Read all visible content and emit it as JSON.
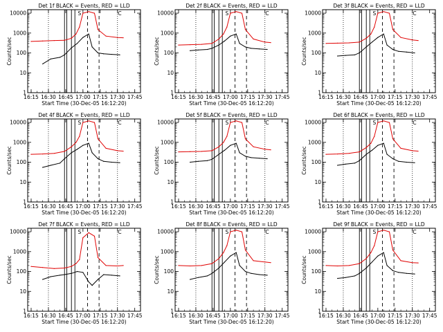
{
  "figure": {
    "xtick_labels": [
      "16:15",
      "16:30",
      "16:45",
      "17:00",
      "17:15",
      "17:30",
      "17:45"
    ],
    "ytick_labels": [
      "1",
      "10",
      "100",
      "1000",
      "10000"
    ],
    "xlabel": "Start Time (30-Dec-05 16:12:20)",
    "ylabel": "Counts/sec",
    "colors": {
      "events": "#000000",
      "lld": "#e00000",
      "axes": "#000000",
      "background": "#ffffff"
    },
    "annotations": {
      "flag_a": "S",
      "flag_b": "C"
    }
  },
  "chart_data": [
    {
      "type": "line",
      "title": "Det 1f BLACK = Events, RED = LLD",
      "xlabel": "Start Time (30-Dec-05 16:12:20)",
      "ylabel": "Counts/sec",
      "yscale": "log",
      "ylim": [
        1,
        15000
      ],
      "xlim": [
        "16:12",
        "17:50"
      ],
      "series": [
        {
          "name": "Events",
          "color": "#000000",
          "x": [
            "16:25",
            "16:32",
            "16:40",
            "16:44",
            "16:50",
            "16:55",
            "17:00",
            "17:05",
            "17:08",
            "17:13",
            "17:18",
            "17:25",
            "17:32"
          ],
          "values": [
            28,
            50,
            60,
            80,
            180,
            300,
            600,
            900,
            200,
            100,
            90,
            85,
            80
          ]
        },
        {
          "name": "LLD",
          "color": "#e00000",
          "x": [
            "16:15",
            "16:25",
            "16:35",
            "16:44",
            "16:50",
            "16:54",
            "16:57",
            "17:00",
            "17:05",
            "17:10",
            "17:13",
            "17:20",
            "17:30",
            "17:35"
          ],
          "values": [
            380,
            400,
            420,
            430,
            550,
            900,
            2000,
            10000,
            12000,
            10000,
            1500,
            700,
            600,
            580
          ]
        }
      ]
    },
    {
      "type": "line",
      "title": "Det 2f BLACK = Events, RED = LLD",
      "xlabel": "Start Time (30-Dec-05 16:12:20)",
      "ylabel": "Counts/sec",
      "yscale": "log",
      "ylim": [
        1,
        15000
      ],
      "xlim": [
        "16:12",
        "17:50"
      ],
      "series": [
        {
          "name": "Events",
          "color": "#000000",
          "x": [
            "16:25",
            "16:32",
            "16:40",
            "16:44",
            "16:50",
            "16:55",
            "17:00",
            "17:05",
            "17:08",
            "17:13",
            "17:18",
            "17:25",
            "17:32"
          ],
          "values": [
            130,
            140,
            150,
            170,
            250,
            400,
            700,
            900,
            300,
            200,
            170,
            160,
            150
          ]
        },
        {
          "name": "LLD",
          "color": "#e00000",
          "x": [
            "16:15",
            "16:25",
            "16:35",
            "16:44",
            "16:50",
            "16:54",
            "16:57",
            "17:00",
            "17:05",
            "17:10",
            "17:13",
            "17:20",
            "17:30",
            "17:35"
          ],
          "values": [
            250,
            260,
            270,
            300,
            500,
            900,
            2000,
            10000,
            12000,
            10000,
            1500,
            500,
            350,
            330
          ]
        }
      ]
    },
    {
      "type": "line",
      "title": "Det 3f BLACK = Events, RED = LLD",
      "xlabel": "Start Time (30-Dec-05 16:12:20)",
      "ylabel": "Counts/sec",
      "yscale": "log",
      "ylim": [
        1,
        15000
      ],
      "xlim": [
        "16:12",
        "17:50"
      ],
      "series": [
        {
          "name": "Events",
          "color": "#000000",
          "x": [
            "16:25",
            "16:32",
            "16:40",
            "16:44",
            "16:50",
            "16:55",
            "17:00",
            "17:05",
            "17:08",
            "17:13",
            "17:18",
            "17:25",
            "17:32"
          ],
          "values": [
            70,
            75,
            80,
            100,
            200,
            350,
            600,
            900,
            250,
            150,
            120,
            110,
            100
          ]
        },
        {
          "name": "LLD",
          "color": "#e00000",
          "x": [
            "16:15",
            "16:25",
            "16:35",
            "16:44",
            "16:50",
            "16:54",
            "16:57",
            "17:00",
            "17:05",
            "17:10",
            "17:13",
            "17:20",
            "17:30",
            "17:35"
          ],
          "values": [
            300,
            310,
            320,
            350,
            550,
            900,
            2000,
            10000,
            12000,
            10000,
            1500,
            600,
            450,
            420
          ]
        }
      ]
    },
    {
      "type": "line",
      "title": "Det 4f BLACK = Events, RED = LLD",
      "xlabel": "Start Time (30-Dec-05 16:12:20)",
      "ylabel": "Counts/sec",
      "yscale": "log",
      "ylim": [
        1,
        15000
      ],
      "xlim": [
        "16:12",
        "17:50"
      ],
      "series": [
        {
          "name": "Events",
          "color": "#000000",
          "x": [
            "16:25",
            "16:32",
            "16:40",
            "16:44",
            "16:50",
            "16:55",
            "17:00",
            "17:05",
            "17:08",
            "17:13",
            "17:18",
            "17:25",
            "17:32"
          ],
          "values": [
            55,
            70,
            90,
            150,
            300,
            450,
            700,
            900,
            300,
            150,
            110,
            100,
            95
          ]
        },
        {
          "name": "LLD",
          "color": "#e00000",
          "x": [
            "16:15",
            "16:25",
            "16:35",
            "16:44",
            "16:50",
            "16:54",
            "16:57",
            "17:00",
            "17:05",
            "17:10",
            "17:13",
            "17:20",
            "17:30",
            "17:35"
          ],
          "values": [
            250,
            260,
            280,
            350,
            600,
            1000,
            2000,
            10000,
            12000,
            10000,
            1500,
            500,
            380,
            360
          ]
        }
      ]
    },
    {
      "type": "line",
      "title": "Det 5f BLACK = Events, RED = LLD",
      "xlabel": "Start Time (30-Dec-05 16:12:20)",
      "ylabel": "Counts/sec",
      "yscale": "log",
      "ylim": [
        1,
        15000
      ],
      "xlim": [
        "16:12",
        "17:50"
      ],
      "series": [
        {
          "name": "Events",
          "color": "#000000",
          "x": [
            "16:25",
            "16:32",
            "16:40",
            "16:44",
            "16:50",
            "16:55",
            "17:00",
            "17:05",
            "17:08",
            "17:13",
            "17:18",
            "17:25",
            "17:32"
          ],
          "values": [
            100,
            110,
            120,
            140,
            250,
            400,
            700,
            900,
            300,
            200,
            170,
            160,
            150
          ]
        },
        {
          "name": "LLD",
          "color": "#e00000",
          "x": [
            "16:15",
            "16:25",
            "16:35",
            "16:44",
            "16:50",
            "16:54",
            "16:57",
            "17:00",
            "17:05",
            "17:10",
            "17:13",
            "17:20",
            "17:30",
            "17:35"
          ],
          "values": [
            330,
            340,
            350,
            380,
            600,
            1000,
            2000,
            10000,
            12000,
            10000,
            1500,
            600,
            450,
            420
          ]
        }
      ]
    },
    {
      "type": "line",
      "title": "Det 6f BLACK = Events, RED = LLD",
      "xlabel": "Start Time (30-Dec-05 16:12:20)",
      "ylabel": "Counts/sec",
      "yscale": "log",
      "ylim": [
        1,
        15000
      ],
      "xlim": [
        "16:12",
        "17:50"
      ],
      "series": [
        {
          "name": "Events",
          "color": "#000000",
          "x": [
            "16:25",
            "16:32",
            "16:40",
            "16:44",
            "16:50",
            "16:55",
            "17:00",
            "17:05",
            "17:08",
            "17:13",
            "17:18",
            "17:25",
            "17:32"
          ],
          "values": [
            70,
            80,
            90,
            120,
            250,
            400,
            700,
            900,
            250,
            150,
            110,
            100,
            95
          ]
        },
        {
          "name": "LLD",
          "color": "#e00000",
          "x": [
            "16:15",
            "16:25",
            "16:35",
            "16:44",
            "16:50",
            "16:54",
            "16:57",
            "17:00",
            "17:05",
            "17:10",
            "17:13",
            "17:20",
            "17:30",
            "17:35"
          ],
          "values": [
            250,
            260,
            280,
            330,
            550,
            900,
            2000,
            10000,
            12000,
            10000,
            1500,
            500,
            380,
            360
          ]
        }
      ]
    },
    {
      "type": "line",
      "title": "Det 7f BLACK = Events, RED = LLD",
      "xlabel": "Start Time (30-Dec-05 16:12:20)",
      "ylabel": "Counts/sec",
      "yscale": "log",
      "ylim": [
        1,
        15000
      ],
      "xlim": [
        "16:12",
        "17:50"
      ],
      "series": [
        {
          "name": "Events",
          "color": "#000000",
          "x": [
            "16:25",
            "16:32",
            "16:40",
            "16:44",
            "16:50",
            "16:55",
            "17:00",
            "17:05",
            "17:08",
            "17:13",
            "17:18",
            "17:25",
            "17:32"
          ],
          "values": [
            40,
            55,
            65,
            70,
            80,
            100,
            90,
            30,
            20,
            40,
            70,
            65,
            60
          ]
        },
        {
          "name": "LLD",
          "color": "#e00000",
          "x": [
            "16:15",
            "16:25",
            "16:35",
            "16:44",
            "16:50",
            "16:54",
            "16:57",
            "17:00",
            "17:05",
            "17:10",
            "17:13",
            "17:20",
            "17:30",
            "17:35"
          ],
          "values": [
            180,
            160,
            140,
            150,
            180,
            250,
            400,
            5000,
            9000,
            6000,
            500,
            200,
            190,
            200
          ]
        }
      ]
    },
    {
      "type": "line",
      "title": "Det 8f BLACK = Events, RED = LLD",
      "xlabel": "Start Time (30-Dec-05 16:12:20)",
      "ylabel": "Counts/sec",
      "yscale": "log",
      "ylim": [
        1,
        15000
      ],
      "xlim": [
        "16:12",
        "17:50"
      ],
      "series": [
        {
          "name": "Events",
          "color": "#000000",
          "x": [
            "16:25",
            "16:32",
            "16:40",
            "16:44",
            "16:50",
            "16:55",
            "17:00",
            "17:05",
            "17:08",
            "17:13",
            "17:18",
            "17:25",
            "17:32"
          ],
          "values": [
            40,
            50,
            60,
            80,
            150,
            300,
            600,
            900,
            200,
            100,
            80,
            70,
            65
          ]
        },
        {
          "name": "LLD",
          "color": "#e00000",
          "x": [
            "16:15",
            "16:25",
            "16:35",
            "16:44",
            "16:50",
            "16:54",
            "16:57",
            "17:00",
            "17:05",
            "17:10",
            "17:13",
            "17:20",
            "17:30",
            "17:35"
          ],
          "values": [
            200,
            190,
            200,
            250,
            450,
            900,
            2000,
            10000,
            12000,
            10000,
            1200,
            350,
            300,
            280
          ]
        }
      ]
    },
    {
      "type": "line",
      "title": "Det 9f BLACK = Events, RED = LLD",
      "xlabel": "Start Time (30-Dec-05 16:12:20)",
      "ylabel": "Counts/sec",
      "yscale": "log",
      "ylim": [
        1,
        15000
      ],
      "xlim": [
        "16:12",
        "17:50"
      ],
      "series": [
        {
          "name": "Events",
          "color": "#000000",
          "x": [
            "16:25",
            "16:32",
            "16:40",
            "16:44",
            "16:50",
            "16:55",
            "17:00",
            "17:05",
            "17:08",
            "17:13",
            "17:18",
            "17:25",
            "17:32"
          ],
          "values": [
            45,
            50,
            60,
            80,
            150,
            300,
            600,
            900,
            200,
            110,
            90,
            80,
            75
          ]
        },
        {
          "name": "LLD",
          "color": "#e00000",
          "x": [
            "16:15",
            "16:25",
            "16:35",
            "16:44",
            "16:50",
            "16:54",
            "16:57",
            "17:00",
            "17:05",
            "17:10",
            "17:13",
            "17:20",
            "17:30",
            "17:35"
          ],
          "values": [
            200,
            190,
            200,
            250,
            450,
            900,
            2000,
            10000,
            12000,
            10000,
            1200,
            350,
            280,
            270
          ]
        }
      ]
    }
  ]
}
